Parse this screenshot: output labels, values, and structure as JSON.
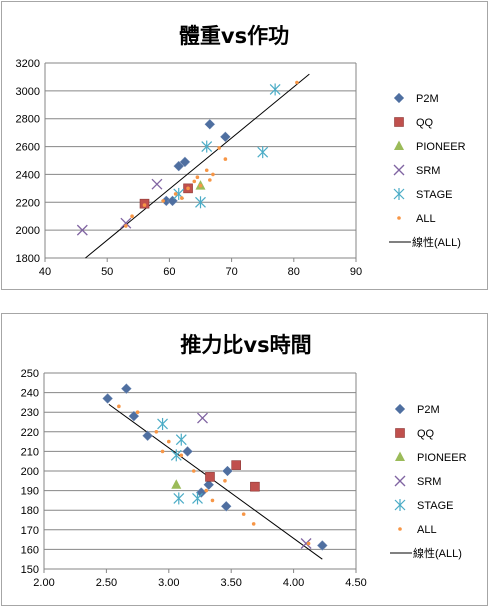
{
  "chart_data": [
    {
      "type": "scatter",
      "title": "體重vs作功",
      "xlim": [
        40,
        90
      ],
      "ylim": [
        1800,
        3200
      ],
      "xticks": [
        "40",
        "50",
        "60",
        "70",
        "80",
        "90"
      ],
      "yticks": [
        "1800",
        "2000",
        "2200",
        "2400",
        "2600",
        "2800",
        "3000",
        "3200"
      ],
      "grid": "horizontal",
      "legend": "right",
      "series": [
        {
          "name": "P2M",
          "marker": "diamond",
          "color": "#4f6fa0",
          "x": [
            59.5,
            60.5,
            61.5,
            62.5,
            66.5,
            69
          ],
          "y": [
            2210,
            2210,
            2460,
            2490,
            2760,
            2670
          ]
        },
        {
          "name": "QQ",
          "marker": "square",
          "color": "#c0504d",
          "x": [
            56,
            63
          ],
          "y": [
            2190,
            2300
          ]
        },
        {
          "name": "PIONEER",
          "marker": "triangle",
          "color": "#9bbb59",
          "x": [
            65
          ],
          "y": [
            2320
          ]
        },
        {
          "name": "SRM",
          "marker": "x",
          "color": "#8064a2",
          "x": [
            46,
            53,
            58
          ],
          "y": [
            2000,
            2050,
            2330
          ]
        },
        {
          "name": "STAGE",
          "marker": "star",
          "color": "#4bacc6",
          "x": [
            61.5,
            65,
            66,
            75,
            77
          ],
          "y": [
            2260,
            2200,
            2600,
            2560,
            3010
          ]
        },
        {
          "name": "ALL",
          "marker": "dot",
          "color": "#f79646",
          "x": [
            53,
            54,
            56,
            59,
            61,
            62,
            63,
            64,
            64.5,
            65,
            66,
            66.5,
            67,
            68,
            69,
            80.5
          ],
          "y": [
            2030,
            2100,
            2180,
            2210,
            2260,
            2230,
            2300,
            2350,
            2380,
            2320,
            2430,
            2360,
            2400,
            2590,
            2510,
            3060
          ]
        }
      ],
      "trendline": {
        "name": "線性(ALL)",
        "x": [
          46.5,
          82.5
        ],
        "y": [
          1800,
          3120
        ]
      }
    },
    {
      "type": "scatter",
      "title": "推力比vs時間",
      "xlim": [
        2.0,
        4.5
      ],
      "ylim": [
        150,
        250
      ],
      "xticks": [
        "2.00",
        "2.50",
        "3.00",
        "3.50",
        "4.00",
        "4.50"
      ],
      "yticks": [
        "150",
        "160",
        "170",
        "180",
        "190",
        "200",
        "210",
        "220",
        "230",
        "240",
        "250"
      ],
      "grid": "horizontal",
      "legend": "right",
      "series": [
        {
          "name": "P2M",
          "marker": "diamond",
          "color": "#4f6fa0",
          "x": [
            2.51,
            2.66,
            2.72,
            2.83,
            3.15,
            3.26,
            3.32,
            3.46,
            3.47,
            4.23
          ],
          "y": [
            237,
            242,
            228,
            218,
            210,
            189,
            193,
            182,
            200,
            162
          ]
        },
        {
          "name": "QQ",
          "marker": "square",
          "color": "#c0504d",
          "x": [
            3.33,
            3.54,
            3.69
          ],
          "y": [
            197,
            203,
            192
          ]
        },
        {
          "name": "PIONEER",
          "marker": "triangle",
          "color": "#9bbb59",
          "x": [
            3.06
          ],
          "y": [
            193
          ]
        },
        {
          "name": "SRM",
          "marker": "x",
          "color": "#8064a2",
          "x": [
            3.27,
            4.1
          ],
          "y": [
            227,
            163
          ]
        },
        {
          "name": "STAGE",
          "marker": "star",
          "color": "#4bacc6",
          "x": [
            2.95,
            3.06,
            3.08,
            3.1,
            3.23
          ],
          "y": [
            224,
            208,
            186,
            216,
            186
          ]
        },
        {
          "name": "ALL",
          "marker": "dot",
          "color": "#f79646",
          "x": [
            2.6,
            2.75,
            2.9,
            2.95,
            3.0,
            3.1,
            3.2,
            3.3,
            3.35,
            3.45,
            3.6,
            3.68,
            4.12
          ],
          "y": [
            233,
            230,
            220,
            210,
            215,
            208,
            200,
            190,
            185,
            195,
            178,
            173,
            163
          ]
        }
      ],
      "trendline": {
        "name": "線性(ALL)",
        "x": [
          2.52,
          4.23
        ],
        "y": [
          234,
          155
        ]
      }
    }
  ]
}
